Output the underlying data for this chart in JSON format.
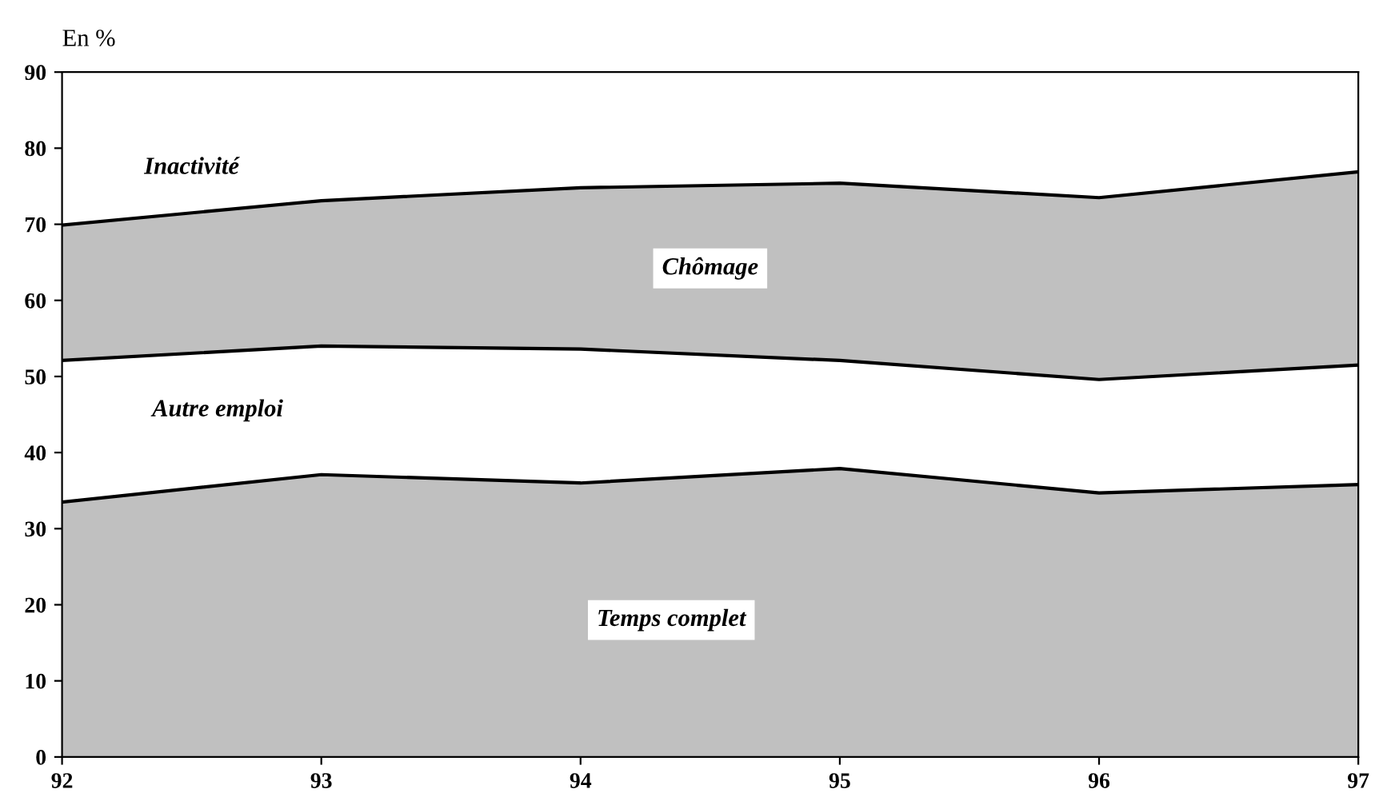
{
  "chart_data": {
    "type": "area",
    "stacked": true,
    "ylabel": "En %",
    "categories": [
      "92",
      "93",
      "94",
      "95",
      "96",
      "97"
    ],
    "series": [
      {
        "name": "Temps complet",
        "color": "#c0c0c0",
        "values": [
          33.5,
          37.1,
          36.0,
          37.9,
          34.7,
          35.8
        ]
      },
      {
        "name": "Autre emploi",
        "color": "#ffffff",
        "values": [
          18.6,
          16.9,
          17.6,
          14.2,
          14.9,
          15.7
        ]
      },
      {
        "name": "Chômage",
        "color": "#c0c0c0",
        "values": [
          17.8,
          19.1,
          21.2,
          23.3,
          23.9,
          25.4
        ]
      }
    ],
    "annotations": [
      "Inactivité"
    ],
    "ylim": [
      0,
      90
    ],
    "yticks": [
      0,
      10,
      20,
      30,
      40,
      50,
      60,
      70,
      80,
      90
    ],
    "grid": false
  }
}
